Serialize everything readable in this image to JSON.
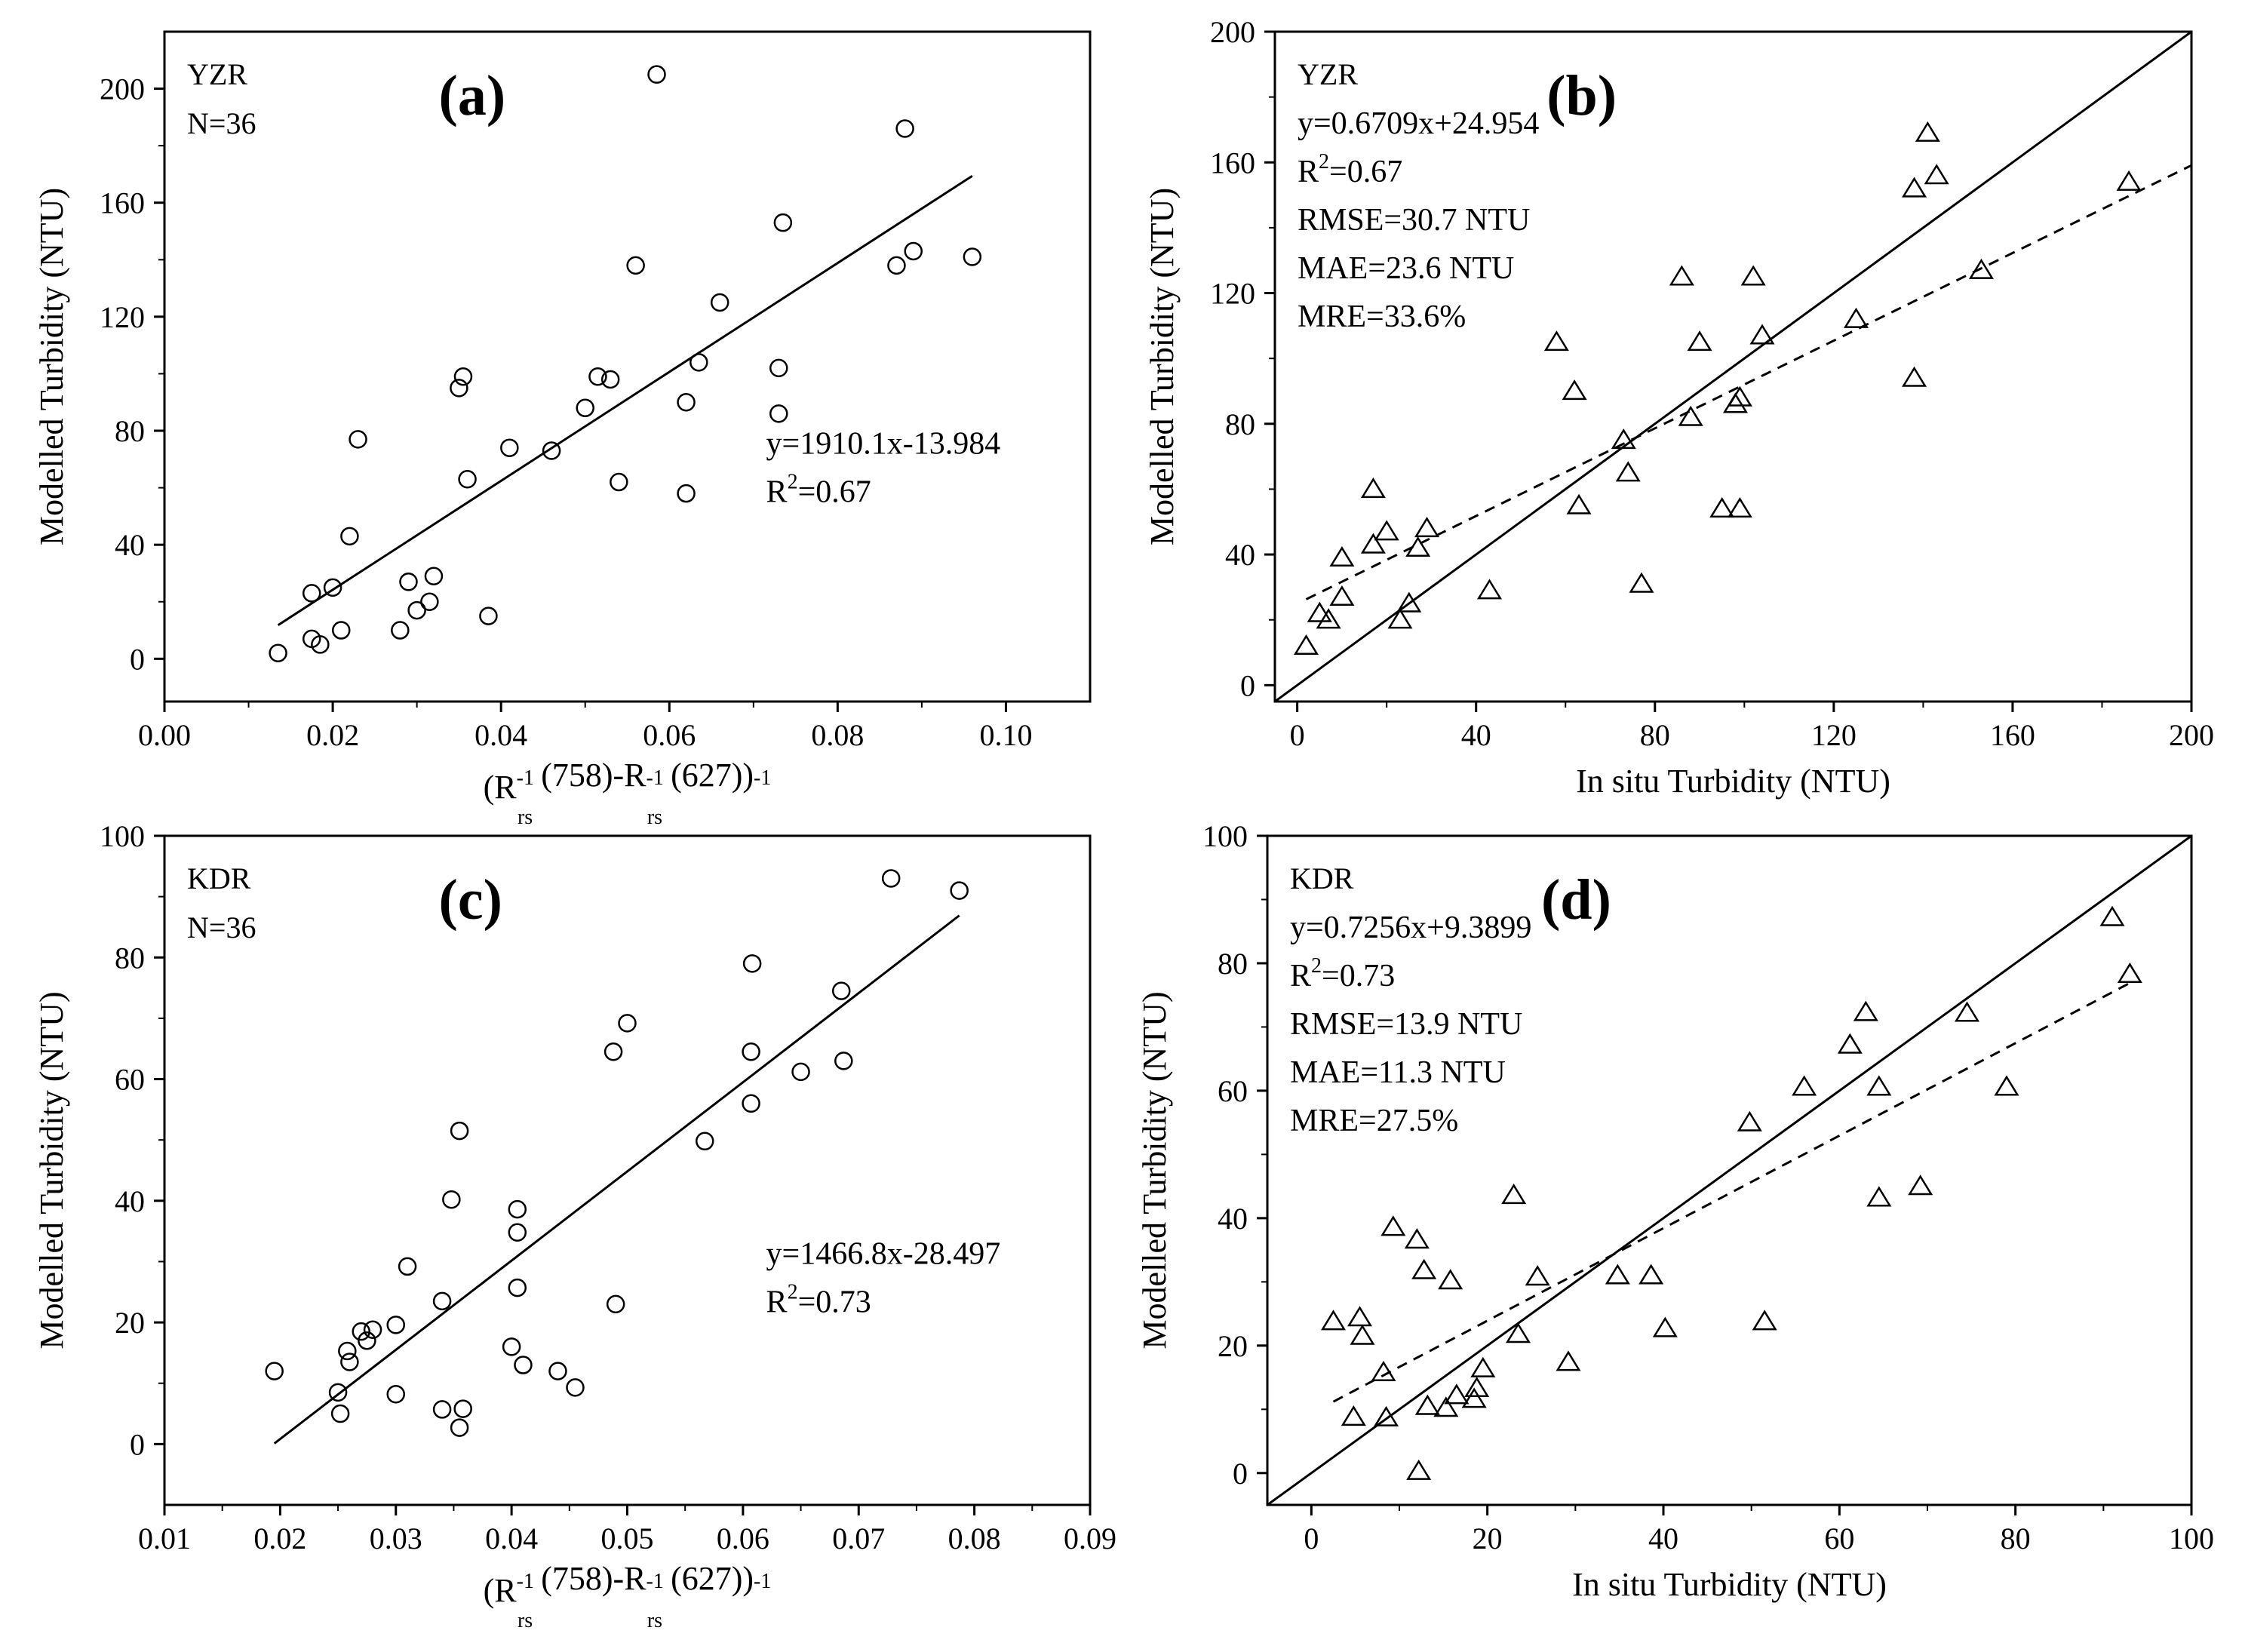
{
  "chart_data": [
    {
      "panel": "(a)",
      "type": "scatter",
      "site": "YZR",
      "n_text": "N=36",
      "xlabel": "",
      "ylabel": "Modelled Turbidity (NTU)",
      "xlim": [
        0,
        0.11
      ],
      "ylim": [
        -15,
        220
      ],
      "xticks": [
        "0.00",
        "0.02",
        "0.04",
        "0.06",
        "0.08",
        "0.10"
      ],
      "xtick_values": [
        0,
        0.02,
        0.04,
        0.06,
        0.08,
        0.1
      ],
      "yticks": [
        "0",
        "40",
        "80",
        "120",
        "160",
        "200"
      ],
      "ytick_values": [
        0,
        40,
        80,
        120,
        160,
        200
      ],
      "marker": "circle",
      "equation": "y=1910.1x-13.984",
      "r2_value": "0.67",
      "fit_lines": [
        {
          "style": "solid",
          "x": [
            0.0135,
            0.096
          ],
          "y": [
            11.8,
            169.4
          ]
        }
      ],
      "points": {
        "x": [
          0.0135,
          0.0175,
          0.0175,
          0.0185,
          0.02,
          0.021,
          0.022,
          0.023,
          0.028,
          0.029,
          0.03,
          0.0315,
          0.032,
          0.035,
          0.0355,
          0.036,
          0.0385,
          0.041,
          0.046,
          0.05,
          0.0515,
          0.053,
          0.054,
          0.0585,
          0.056,
          0.062,
          0.062,
          0.0635,
          0.066,
          0.073,
          0.073,
          0.0735,
          0.087,
          0.088,
          0.089,
          0.096
        ],
        "y": [
          2,
          23,
          7,
          5,
          25,
          10,
          43,
          77,
          10,
          27,
          17,
          20,
          29,
          95,
          99,
          63,
          15,
          74,
          73,
          88,
          99,
          98,
          62,
          205,
          138,
          90,
          58,
          104,
          125,
          102,
          86,
          153,
          138,
          186,
          143,
          141
        ]
      }
    },
    {
      "panel": "(b)",
      "type": "scatter",
      "site": "YZR",
      "xlabel": "In situ Turbidity (NTU)",
      "ylabel": "Modelled Turbidity (NTU)",
      "xlim": [
        -5,
        200
      ],
      "ylim": [
        -5,
        200
      ],
      "xticks": [
        "0",
        "40",
        "80",
        "120",
        "160",
        "200"
      ],
      "xtick_values": [
        0,
        40,
        80,
        120,
        160,
        200
      ],
      "yticks": [
        "0",
        "40",
        "80",
        "120",
        "160",
        "200"
      ],
      "ytick_values": [
        0,
        40,
        80,
        120,
        160,
        200
      ],
      "marker": "triangle",
      "equation": "y=0.6709x+24.954",
      "r2_value": "0.67",
      "rmse": "RMSE=30.7 NTU",
      "mae": "MAE=23.6 NTU",
      "mre": "MRE=33.6%",
      "fit_lines": [
        {
          "style": "solid",
          "x": [
            -5,
            200
          ],
          "y": [
            -5,
            200
          ]
        },
        {
          "style": "dashed",
          "x": [
            2,
            200
          ],
          "y": [
            26.3,
            159.1
          ]
        }
      ],
      "points": {
        "x": [
          2,
          5,
          7,
          10,
          10,
          17,
          17,
          20,
          23,
          25,
          27,
          29,
          43,
          58,
          62,
          63,
          73,
          74,
          77,
          86,
          88,
          90,
          95,
          98,
          99,
          99,
          102,
          104,
          125,
          138,
          138,
          141,
          143,
          153,
          186
        ],
        "y": [
          12,
          22,
          20,
          39,
          27,
          60,
          43,
          47,
          20,
          25,
          42,
          48,
          29,
          105,
          90,
          55,
          75,
          65,
          31,
          125,
          82,
          105,
          54,
          86,
          54,
          88,
          125,
          107,
          112,
          94,
          152,
          169,
          156,
          127,
          154
        ]
      }
    },
    {
      "panel": "(c)",
      "type": "scatter",
      "site": "KDR",
      "n_text": "N=36",
      "xlabel": "",
      "ylabel": "Modelled Turbidity (NTU)",
      "xlim": [
        0.01,
        0.09
      ],
      "ylim": [
        -10,
        100
      ],
      "xticks": [
        "0.01",
        "0.02",
        "0.03",
        "0.04",
        "0.05",
        "0.06",
        "0.07",
        "0.08",
        "0.09"
      ],
      "xtick_values": [
        0.01,
        0.02,
        0.03,
        0.04,
        0.05,
        0.06,
        0.07,
        0.08,
        0.09
      ],
      "yticks": [
        "0",
        "20",
        "40",
        "60",
        "80",
        "100"
      ],
      "ytick_values": [
        0,
        20,
        40,
        60,
        80,
        100
      ],
      "marker": "circle",
      "equation": "y=1466.8x-28.497",
      "r2_value": "0.73",
      "fit_lines": [
        {
          "style": "solid",
          "x": [
            0.0195,
            0.0787
          ],
          "y": [
            0.1,
            86.9
          ]
        }
      ],
      "points": {
        "x": [
          0.0195,
          0.025,
          0.0252,
          0.0258,
          0.026,
          0.027,
          0.0275,
          0.028,
          0.03,
          0.03,
          0.031,
          0.034,
          0.034,
          0.0348,
          0.0355,
          0.0355,
          0.0358,
          0.04,
          0.0405,
          0.0405,
          0.0405,
          0.041,
          0.044,
          0.0455,
          0.0488,
          0.049,
          0.05,
          0.0567,
          0.0607,
          0.0607,
          0.0608,
          0.065,
          0.0685,
          0.0687,
          0.0728,
          0.0787
        ],
        "y": [
          12,
          8.5,
          5,
          15.3,
          13.5,
          18.5,
          17,
          18.8,
          8.2,
          19.6,
          29.2,
          5.7,
          23.5,
          40.2,
          2.7,
          51.5,
          5.8,
          16,
          25.7,
          34.8,
          38.6,
          13,
          12,
          9.3,
          64.5,
          23,
          69.2,
          49.8,
          64.5,
          56,
          79,
          61.2,
          74.5,
          63,
          93,
          91
        ]
      }
    },
    {
      "panel": "(d)",
      "type": "scatter",
      "site": "KDR",
      "xlabel": "In situ Turbidity (NTU)",
      "ylabel": "Modelled Turbidity (NTU)",
      "xlim": [
        -5,
        100
      ],
      "ylim": [
        -5,
        100
      ],
      "xticks": [
        "0",
        "20",
        "40",
        "60",
        "80",
        "100"
      ],
      "xtick_values": [
        0,
        20,
        40,
        60,
        80,
        100
      ],
      "yticks": [
        "0",
        "20",
        "40",
        "60",
        "80",
        "100"
      ],
      "ytick_values": [
        0,
        20,
        40,
        60,
        80,
        100
      ],
      "marker": "triangle",
      "equation": "y=0.7256x+9.3899",
      "r2_value": "0.73",
      "rmse": "RMSE=13.9 NTU",
      "mae": "MAE=11.3 NTU",
      "mre": "MRE=27.5%",
      "fit_lines": [
        {
          "style": "solid",
          "x": [
            -5,
            100
          ],
          "y": [
            -5,
            100
          ]
        },
        {
          "style": "dashed",
          "x": [
            2.5,
            93
          ],
          "y": [
            11.2,
            76.9
          ]
        }
      ],
      "points": {
        "x": [
          2.5,
          4.8,
          5.5,
          5.8,
          8.2,
          8.5,
          9.3,
          12,
          12.2,
          12.8,
          13.2,
          15.3,
          15.8,
          16.5,
          18.5,
          18.8,
          19.5,
          23,
          23.5,
          25.7,
          29.2,
          34.8,
          38.6,
          40.2,
          49.8,
          51.5,
          56,
          61.2,
          63,
          64.5,
          64.5,
          69.2,
          74.5,
          79,
          91,
          93
        ],
        "y": [
          23.8,
          8.8,
          24.4,
          21.5,
          15.8,
          8.7,
          38.6,
          36.6,
          0.3,
          31.8,
          10.5,
          10.2,
          30.2,
          12.2,
          11.6,
          13.3,
          16.4,
          43.6,
          21.8,
          30.8,
          17.4,
          31,
          31,
          22.7,
          55,
          23.8,
          60.6,
          67.2,
          72.3,
          60.6,
          43.2,
          45,
          72.2,
          60.6,
          87.2,
          78.3
        ]
      }
    }
  ]
}
